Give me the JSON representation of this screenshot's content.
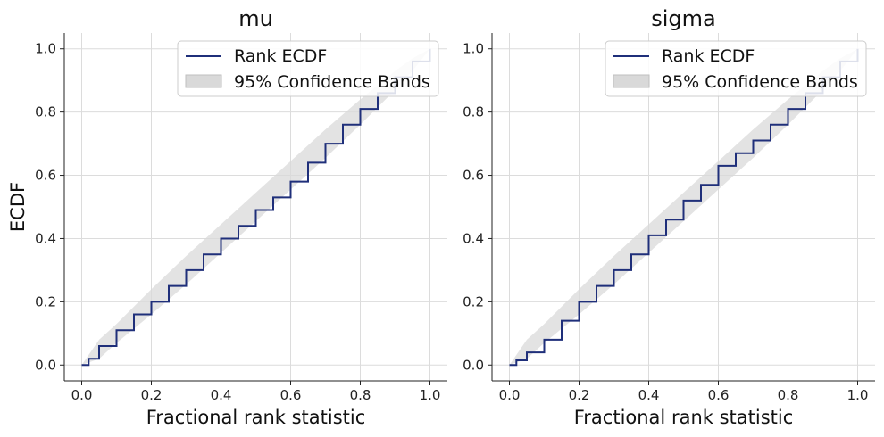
{
  "chart_data": [
    {
      "type": "line",
      "title": "mu",
      "xlabel": "Fractional rank statistic",
      "ylabel": "ECDF",
      "xlim": [
        -0.05,
        1.05
      ],
      "ylim": [
        -0.05,
        1.05
      ],
      "xticks": [
        "0.0",
        "0.2",
        "0.4",
        "0.6",
        "0.8",
        "1.0"
      ],
      "yticks": [
        "0.0",
        "0.2",
        "0.4",
        "0.6",
        "0.8",
        "1.0"
      ],
      "grid": true,
      "legend": {
        "position": "top-right",
        "entries": [
          "Rank ECDF",
          "95% Confidence Bands"
        ]
      },
      "colors": {
        "line": "#1f2f7a",
        "band": "#d9d9d9"
      },
      "series": [
        {
          "name": "Rank ECDF",
          "x": [
            0.0,
            0.02,
            0.05,
            0.1,
            0.15,
            0.2,
            0.25,
            0.3,
            0.35,
            0.4,
            0.45,
            0.5,
            0.55,
            0.6,
            0.65,
            0.7,
            0.75,
            0.8,
            0.85,
            0.9,
            0.95,
            1.0
          ],
          "y": [
            0.0,
            0.02,
            0.06,
            0.11,
            0.16,
            0.2,
            0.25,
            0.3,
            0.35,
            0.4,
            0.44,
            0.49,
            0.53,
            0.58,
            0.64,
            0.7,
            0.76,
            0.81,
            0.86,
            0.91,
            0.96,
            1.0
          ]
        },
        {
          "name": "95% Confidence Bands",
          "x": [
            0.0,
            0.05,
            0.1,
            0.2,
            0.3,
            0.4,
            0.5,
            0.6,
            0.7,
            0.8,
            0.9,
            0.95,
            1.0
          ],
          "lower": [
            0.0,
            0.02,
            0.07,
            0.16,
            0.255,
            0.355,
            0.455,
            0.555,
            0.655,
            0.76,
            0.87,
            0.93,
            1.0
          ],
          "upper": [
            0.0,
            0.08,
            0.13,
            0.24,
            0.345,
            0.445,
            0.545,
            0.645,
            0.745,
            0.84,
            0.93,
            0.97,
            1.0
          ]
        }
      ]
    },
    {
      "type": "line",
      "title": "sigma",
      "xlabel": "Fractional rank statistic",
      "ylabel": "",
      "xlim": [
        -0.05,
        1.05
      ],
      "ylim": [
        -0.05,
        1.05
      ],
      "xticks": [
        "0.0",
        "0.2",
        "0.4",
        "0.6",
        "0.8",
        "1.0"
      ],
      "yticks": [
        "0.0",
        "0.2",
        "0.4",
        "0.6",
        "0.8",
        "1.0"
      ],
      "grid": true,
      "legend": {
        "position": "top-right",
        "entries": [
          "Rank ECDF",
          "95% Confidence Bands"
        ]
      },
      "colors": {
        "line": "#1f2f7a",
        "band": "#d9d9d9"
      },
      "series": [
        {
          "name": "Rank ECDF",
          "x": [
            0.0,
            0.02,
            0.05,
            0.1,
            0.15,
            0.2,
            0.25,
            0.3,
            0.35,
            0.4,
            0.45,
            0.5,
            0.55,
            0.6,
            0.65,
            0.7,
            0.75,
            0.8,
            0.85,
            0.9,
            0.95,
            1.0
          ],
          "y": [
            0.0,
            0.015,
            0.04,
            0.08,
            0.14,
            0.2,
            0.25,
            0.3,
            0.35,
            0.41,
            0.46,
            0.52,
            0.57,
            0.63,
            0.67,
            0.71,
            0.76,
            0.81,
            0.86,
            0.91,
            0.96,
            1.0
          ]
        },
        {
          "name": "95% Confidence Bands",
          "x": [
            0.0,
            0.05,
            0.1,
            0.2,
            0.3,
            0.4,
            0.5,
            0.6,
            0.7,
            0.8,
            0.9,
            0.95,
            1.0
          ],
          "lower": [
            0.0,
            0.02,
            0.07,
            0.16,
            0.255,
            0.355,
            0.455,
            0.555,
            0.655,
            0.76,
            0.87,
            0.93,
            1.0
          ],
          "upper": [
            0.0,
            0.08,
            0.13,
            0.24,
            0.345,
            0.445,
            0.545,
            0.645,
            0.745,
            0.84,
            0.93,
            0.97,
            1.0
          ]
        }
      ]
    }
  ]
}
